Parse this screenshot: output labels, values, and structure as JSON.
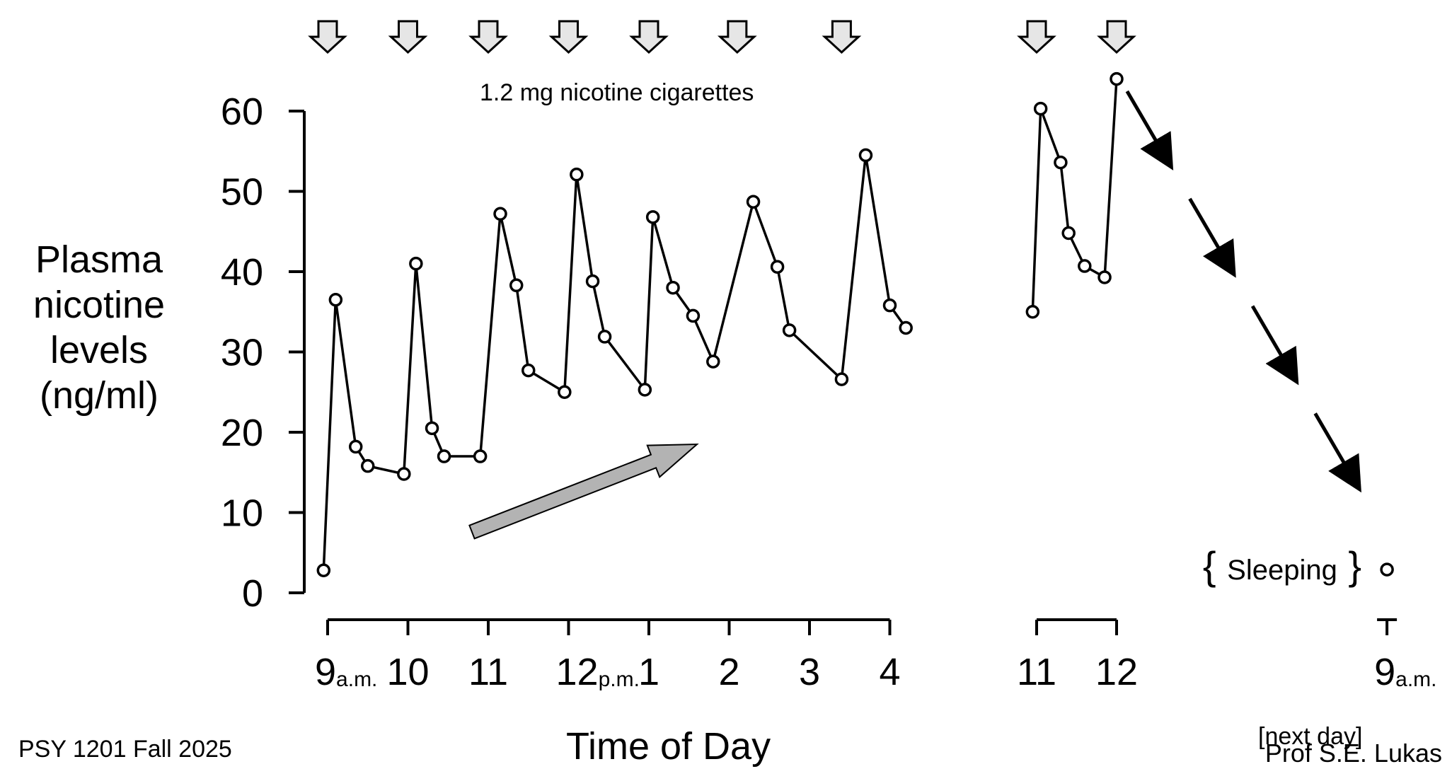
{
  "chart_data": {
    "type": "line",
    "annotation": "1.2 mg nicotine cigarettes",
    "ylabel_lines": [
      "Plasma",
      "nicotine",
      "levels",
      "(ng/ml)"
    ],
    "xlabel": "Time of Day",
    "ylim": [
      0,
      60
    ],
    "yticks": [
      "0",
      "10",
      "20",
      "30",
      "40",
      "50",
      "60"
    ],
    "xticks": [
      {
        "label": "9",
        "sub": "a.m.",
        "hour": 9
      },
      {
        "label": "10",
        "sub": "",
        "hour": 10
      },
      {
        "label": "11",
        "sub": "",
        "hour": 11
      },
      {
        "label": "12",
        "sub": "p.m.",
        "hour": 12
      },
      {
        "label": "1",
        "sub": "",
        "hour": 13
      },
      {
        "label": "2",
        "sub": "",
        "hour": 14
      },
      {
        "label": "3",
        "sub": "",
        "hour": 15
      },
      {
        "label": "4",
        "sub": "",
        "hour": 16
      },
      {
        "label": "11",
        "sub": "",
        "hour": 23
      },
      {
        "label": "12",
        "sub": "",
        "hour": 24
      },
      {
        "label": "9",
        "sub": "a.m.",
        "hour": 33
      }
    ],
    "cigarette_times": [
      9.0,
      10.0,
      11.0,
      12.0,
      13.0,
      14.1,
      15.4,
      23.0,
      24.0
    ],
    "series": [
      {
        "points": [
          [
            8.95,
            2.8
          ],
          [
            9.1,
            36.5
          ],
          [
            9.35,
            18.2
          ],
          [
            9.5,
            15.8
          ],
          [
            9.95,
            14.8
          ],
          [
            10.1,
            41.0
          ],
          [
            10.3,
            20.5
          ],
          [
            10.45,
            17.0
          ],
          [
            10.9,
            17.0
          ],
          [
            11.15,
            47.2
          ],
          [
            11.35,
            38.3
          ],
          [
            11.5,
            27.7
          ],
          [
            11.95,
            25.0
          ],
          [
            12.1,
            52.1
          ],
          [
            12.3,
            38.8
          ],
          [
            12.45,
            31.9
          ],
          [
            12.95,
            25.3
          ],
          [
            13.05,
            46.8
          ],
          [
            13.3,
            38.0
          ],
          [
            13.55,
            34.5
          ],
          [
            13.8,
            28.8
          ],
          [
            14.3,
            48.7
          ],
          [
            14.6,
            40.6
          ],
          [
            14.75,
            32.7
          ],
          [
            15.4,
            26.6
          ],
          [
            15.7,
            54.5
          ],
          [
            16.0,
            35.8
          ],
          [
            16.2,
            33.0
          ]
        ]
      },
      {
        "points": [
          [
            22.95,
            35.0
          ],
          [
            23.05,
            60.3
          ],
          [
            23.3,
            53.6
          ],
          [
            23.4,
            44.8
          ],
          [
            23.6,
            40.7
          ],
          [
            23.85,
            39.3
          ],
          [
            24.0,
            64.0
          ]
        ]
      }
    ],
    "decline_arrow": {
      "from": [
        24.1,
        63.0
      ],
      "to": [
        32.6,
        9.5
      ]
    },
    "isolated_point": [
      33.0,
      2.9
    ],
    "sleep_label": "Sleeping",
    "next_day_label": "[next day]"
  },
  "footer": {
    "left": "PSY 1201 Fall 2025",
    "right": "Prof S.E. Lukas"
  }
}
